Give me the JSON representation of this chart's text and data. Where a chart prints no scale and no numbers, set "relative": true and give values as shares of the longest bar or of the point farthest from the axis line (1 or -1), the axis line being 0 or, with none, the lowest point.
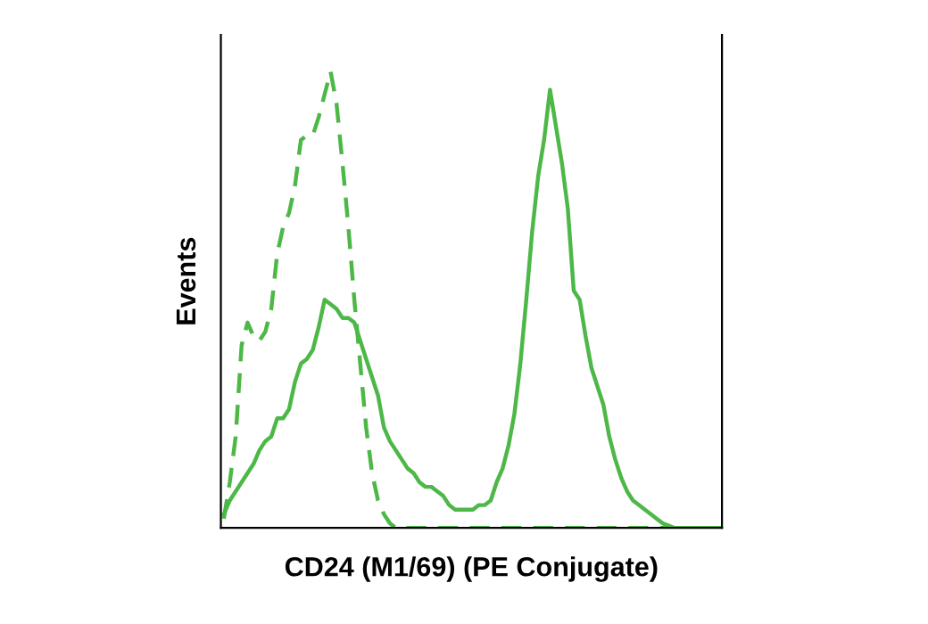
{
  "chart_data": {
    "type": "line",
    "relative": true,
    "xlabel": "CD24 (M1/69) (PE Conjugate)",
    "ylabel": "Events",
    "categories": [
      null,
      null,
      null,
      null,
      null,
      null,
      null,
      null,
      null,
      null,
      null,
      null,
      null,
      null,
      null,
      null,
      null,
      null,
      null,
      null,
      null,
      null,
      null,
      null,
      null,
      null,
      null,
      null,
      null,
      null,
      null,
      null,
      null,
      null,
      null,
      null,
      null,
      null,
      null,
      null,
      null,
      null,
      null,
      null,
      null,
      null,
      null,
      null,
      null,
      null,
      null,
      null,
      null,
      null,
      null,
      null,
      null,
      null,
      null,
      null,
      null,
      null,
      null,
      null,
      null,
      null,
      null,
      null,
      null,
      null,
      null,
      null,
      null,
      null,
      null,
      null,
      null,
      null,
      null,
      null,
      null,
      null,
      null,
      null,
      null
    ],
    "series": [
      {
        "color": "#4db848",
        "line_style": "dashed",
        "values": [
          0.02,
          0.1,
          0.2,
          0.4,
          0.45,
          0.42,
          0.41,
          0.43,
          0.48,
          0.6,
          0.66,
          0.69,
          0.75,
          0.85,
          0.86,
          0.86,
          0.9,
          0.95,
          1.0,
          0.93,
          0.8,
          0.66,
          0.5,
          0.36,
          0.22,
          0.12,
          0.06,
          0.03,
          0.01,
          0,
          0,
          0,
          0,
          0,
          0,
          0,
          0,
          0,
          0,
          0,
          0,
          0,
          0,
          0,
          0,
          0,
          0,
          0,
          0,
          0,
          0,
          0,
          0,
          0,
          0,
          0,
          0,
          0,
          0,
          0,
          0,
          0,
          0,
          0,
          0,
          0,
          0,
          0,
          0,
          0,
          0,
          0,
          0,
          0,
          0,
          0,
          0,
          0,
          0,
          0,
          0,
          0,
          0,
          0,
          0
        ]
      },
      {
        "color": "#4db848",
        "line_style": "solid",
        "values": [
          0.03,
          0.06,
          0.08,
          0.1,
          0.12,
          0.14,
          0.17,
          0.19,
          0.2,
          0.24,
          0.24,
          0.26,
          0.32,
          0.36,
          0.37,
          0.39,
          0.44,
          0.5,
          0.49,
          0.48,
          0.46,
          0.46,
          0.45,
          0.41,
          0.37,
          0.33,
          0.29,
          0.22,
          0.19,
          0.17,
          0.15,
          0.13,
          0.12,
          0.1,
          0.09,
          0.09,
          0.08,
          0.07,
          0.05,
          0.04,
          0.04,
          0.04,
          0.04,
          0.05,
          0.05,
          0.06,
          0.1,
          0.13,
          0.18,
          0.25,
          0.36,
          0.5,
          0.65,
          0.77,
          0.85,
          0.96,
          0.88,
          0.8,
          0.7,
          0.52,
          0.5,
          0.42,
          0.35,
          0.31,
          0.27,
          0.2,
          0.15,
          0.11,
          0.08,
          0.06,
          0.05,
          0.04,
          0.03,
          0.02,
          0.01,
          0.005,
          0,
          0,
          0,
          0,
          0,
          0,
          0,
          0,
          0
        ]
      }
    ]
  }
}
